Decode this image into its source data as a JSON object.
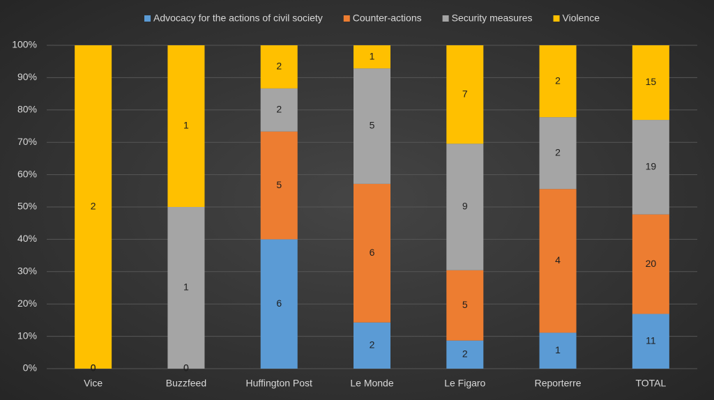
{
  "chart_data": {
    "type": "bar",
    "stacked": "percent",
    "categories": [
      "Vice",
      "Buzzfeed",
      "Huffington Post",
      "Le Monde",
      "Le Figaro",
      "Reporterre",
      "TOTAL"
    ],
    "series": [
      {
        "name": "Advocacy for the actions of civil society",
        "color": "#5b9bd5",
        "values": [
          0,
          0,
          6,
          2,
          2,
          1,
          11
        ]
      },
      {
        "name": "Counter-actions",
        "color": "#ed7d31",
        "values": [
          0,
          0,
          5,
          6,
          5,
          4,
          20
        ]
      },
      {
        "name": "Security measures",
        "color": "#a5a5a5",
        "values": [
          0,
          1,
          2,
          5,
          9,
          2,
          19
        ]
      },
      {
        "name": "Violence",
        "color": "#ffc000",
        "values": [
          2,
          1,
          2,
          1,
          7,
          2,
          15
        ]
      }
    ],
    "ylim": [
      0,
      100
    ],
    "yticks": [
      {
        "value": 0,
        "label": "0%"
      },
      {
        "value": 10,
        "label": "10%"
      },
      {
        "value": 20,
        "label": "20%"
      },
      {
        "value": 30,
        "label": "30%"
      },
      {
        "value": 40,
        "label": "40%"
      },
      {
        "value": 50,
        "label": "50%"
      },
      {
        "value": 60,
        "label": "60%"
      },
      {
        "value": 70,
        "label": "70%"
      },
      {
        "value": 80,
        "label": "80%"
      },
      {
        "value": 90,
        "label": "90%"
      },
      {
        "value": 100,
        "label": "100%"
      }
    ],
    "grid": true,
    "legend": "top"
  }
}
